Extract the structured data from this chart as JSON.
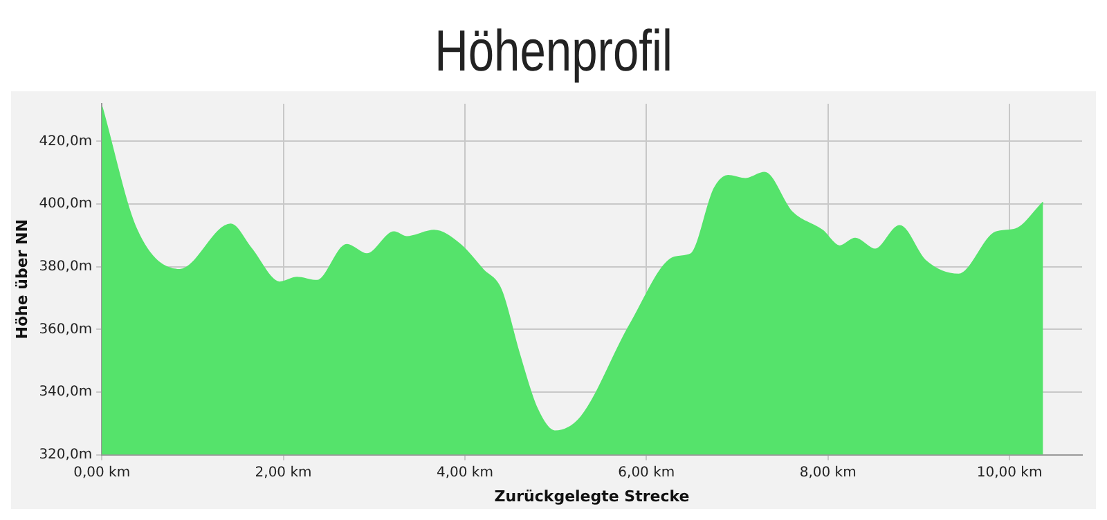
{
  "chart_data": {
    "type": "area",
    "title": "Höhenprofil",
    "xlabel": "Zurückgelegte Strecke",
    "ylabel": "Höhe über NN",
    "x": [
      0,
      0.38,
      0.86,
      1.42,
      1.64,
      1.96,
      2.15,
      2.37,
      2.7,
      2.92,
      3.22,
      3.36,
      3.66,
      3.95,
      4.2,
      4.4,
      4.59,
      4.79,
      4.99,
      5.28,
      5.82,
      6.31,
      6.49,
      6.75,
      6.9,
      7.09,
      7.3,
      7.6,
      7.94,
      8.13,
      8.3,
      8.52,
      8.79,
      9.07,
      9.44,
      9.85,
      10.07,
      10.37
    ],
    "series": [
      {
        "color": "#55e36b",
        "values": [
          431,
          392,
          379,
          393.5,
          386,
          375,
          376.5,
          375.5,
          387,
          384,
          391,
          389.5,
          391.5,
          387,
          379,
          372.5,
          353,
          335,
          327.5,
          332,
          361.5,
          383,
          384,
          405,
          409,
          408,
          410,
          397.5,
          391.5,
          386.5,
          389,
          385.5,
          393,
          382,
          377.5,
          391,
          392,
          400.5
        ]
      }
    ],
    "xlim": [
      0,
      10.8
    ],
    "ylim": [
      320,
      432
    ],
    "xticks": [
      {
        "value": 0,
        "label": "0,00 km"
      },
      {
        "value": 2,
        "label": "2,00 km"
      },
      {
        "value": 4,
        "label": "4,00 km"
      },
      {
        "value": 6,
        "label": "6,00 km"
      },
      {
        "value": 8,
        "label": "8,00 km"
      },
      {
        "value": 10,
        "label": "10,00 km"
      }
    ],
    "yticks": [
      {
        "value": 320,
        "label": "320,0m"
      },
      {
        "value": 340,
        "label": "340,0m"
      },
      {
        "value": 360,
        "label": "360,0m"
      },
      {
        "value": 380,
        "label": "380,0m"
      },
      {
        "value": 400,
        "label": "400,0m"
      },
      {
        "value": 420,
        "label": "420,0m"
      }
    ],
    "grid": true,
    "legend": false
  }
}
